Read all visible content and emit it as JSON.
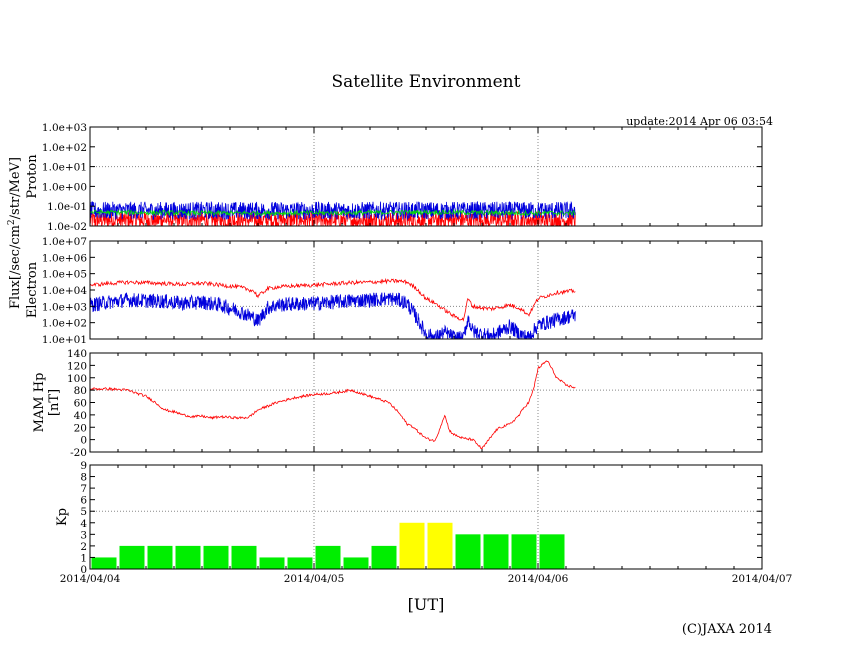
{
  "title": "Satellite Environment",
  "update": "update:2014 Apr 06 03:54",
  "copyright": "(C)JAXA 2014",
  "xlabel": "[UT]",
  "colors": {
    "red": "#ff0000",
    "blue": "#0000dd",
    "green": "#00dd00",
    "yellow": "#ffff00",
    "grid": "#888888"
  },
  "chart_data": [
    {
      "id": "proton",
      "type": "line",
      "title": "",
      "ylabel": "Proton",
      "ylabel_shared": "Flux[/sec/cm^2/str/MeV]",
      "yscale": "log",
      "ylim": [
        0.01,
        1000
      ],
      "yticks": [
        "1.0e-02",
        "1.0e-01",
        "1.0e+00",
        "1.0e+01",
        "1.0e+02",
        "1.0e+03"
      ],
      "ytick_values": [
        0.01,
        0.1,
        1,
        10,
        100,
        1000
      ],
      "grid_yvalues": [
        10
      ],
      "xlim_hours": [
        0,
        72
      ],
      "xticks": [
        "2014/04/04",
        "2014/04/05",
        "2014/04/06",
        "2014/04/07"
      ],
      "series": [
        {
          "name": "red",
          "color": "#ff0000",
          "noise": "band",
          "x": [
            0,
            12,
            24,
            36,
            46,
            52
          ],
          "y": [
            0.02,
            0.02,
            0.02,
            0.02,
            0.02,
            0.02
          ]
        },
        {
          "name": "blue",
          "color": "#0000dd",
          "noise": "band",
          "x": [
            0,
            12,
            24,
            36,
            46,
            52
          ],
          "y": [
            0.06,
            0.06,
            0.06,
            0.06,
            0.06,
            0.06
          ]
        },
        {
          "name": "green",
          "color": "#00dd00",
          "noise": "small",
          "x": [
            0,
            12,
            24,
            36,
            46,
            52
          ],
          "y": [
            0.05,
            0.045,
            0.045,
            0.05,
            0.045,
            0.045
          ]
        }
      ]
    },
    {
      "id": "electron",
      "type": "line",
      "title": "",
      "ylabel": "Electron",
      "yscale": "log",
      "ylim": [
        10,
        10000000
      ],
      "yticks": [
        "1.0e+01",
        "1.0e+02",
        "1.0e+03",
        "1.0e+04",
        "1.0e+05",
        "1.0e+06",
        "1.0e+07"
      ],
      "ytick_values": [
        10,
        100,
        1000,
        10000,
        100000,
        1000000,
        10000000
      ],
      "grid_yvalues": [
        1000
      ],
      "xlim_hours": [
        0,
        72
      ],
      "series": [
        {
          "name": "red",
          "color": "#ff0000",
          "noise": "small",
          "x": [
            0,
            2,
            4,
            6,
            8,
            10,
            12,
            14,
            16,
            17.5,
            18,
            19,
            20,
            22,
            24,
            26,
            28,
            30,
            32,
            33,
            34,
            35,
            36,
            37,
            38,
            39,
            40,
            40.5,
            41,
            42,
            43,
            44,
            45,
            46,
            47,
            48,
            50,
            52
          ],
          "y": [
            20000,
            25000,
            30000,
            28000,
            25000,
            22000,
            26000,
            20000,
            15000,
            9000,
            4000,
            12000,
            15000,
            18000,
            20000,
            24000,
            28000,
            30000,
            35000,
            36000,
            30000,
            12000,
            3000,
            1500,
            600,
            250,
            150,
            3000,
            1000,
            800,
            700,
            900,
            1200,
            800,
            300,
            3000,
            7000,
            9000
          ]
        },
        {
          "name": "blue",
          "color": "#0000dd",
          "noise": "band",
          "x": [
            0,
            2,
            4,
            6,
            8,
            10,
            12,
            14,
            16,
            17.5,
            18,
            19,
            20,
            22,
            24,
            26,
            28,
            30,
            32,
            33,
            34,
            35,
            36,
            37,
            38,
            39,
            40,
            40.5,
            41,
            42,
            43,
            44,
            45,
            46,
            47,
            48,
            50,
            52
          ],
          "y": [
            1200,
            1800,
            2500,
            2200,
            2000,
            1500,
            1800,
            1200,
            500,
            200,
            120,
            800,
            1200,
            1400,
            1500,
            1800,
            2200,
            2500,
            3000,
            2500,
            1500,
            200,
            20,
            12,
            25,
            12,
            10,
            200,
            30,
            20,
            15,
            30,
            60,
            20,
            12,
            70,
            150,
            300
          ]
        }
      ]
    },
    {
      "id": "mam",
      "type": "line",
      "title": "",
      "ylabel": "MAM Hp",
      "ylabel2": "[nT]",
      "yscale": "linear",
      "ylim": [
        -20,
        140
      ],
      "yticks": [
        "-20",
        "0",
        "20",
        "40",
        "60",
        "80",
        "100",
        "120",
        "140"
      ],
      "ytick_values": [
        -20,
        0,
        20,
        40,
        60,
        80,
        100,
        120,
        140
      ],
      "grid_yvalues": [
        80
      ],
      "xlim_hours": [
        0,
        72
      ],
      "series": [
        {
          "name": "MAM Hp",
          "color": "#ff0000",
          "noise": "small",
          "x": [
            0,
            2,
            4,
            6,
            7,
            8,
            9,
            10,
            11,
            12,
            13,
            14,
            15,
            16,
            17,
            18,
            19,
            20,
            22,
            24,
            26,
            28,
            30,
            32,
            33,
            34,
            34.5,
            35,
            36,
            37,
            38,
            38.5,
            39,
            39.5,
            40,
            41,
            42,
            43,
            43.5,
            44,
            45,
            46,
            46.5,
            47,
            47.5,
            48,
            49,
            50,
            51,
            52
          ],
          "y": [
            82,
            82,
            80,
            70,
            60,
            48,
            45,
            40,
            37,
            38,
            35,
            37,
            36,
            35,
            36,
            48,
            54,
            60,
            68,
            73,
            75,
            80,
            70,
            60,
            45,
            25,
            22,
            15,
            2,
            -2,
            40,
            15,
            8,
            5,
            2,
            0,
            -15,
            5,
            15,
            20,
            25,
            40,
            52,
            60,
            80,
            115,
            128,
            100,
            88,
            84
          ]
        }
      ]
    },
    {
      "id": "kp",
      "type": "bar",
      "title": "",
      "ylabel": "Kp",
      "yscale": "linear",
      "ylim": [
        0,
        9
      ],
      "yticks": [
        "0",
        "1",
        "2",
        "3",
        "4",
        "5",
        "6",
        "7",
        "8",
        "9"
      ],
      "ytick_values": [
        0,
        1,
        2,
        3,
        4,
        5,
        6,
        7,
        8,
        9
      ],
      "grid_yvalues": [
        5
      ],
      "xlim_hours": [
        0,
        72
      ],
      "bin_hours": 3,
      "values": [
        1,
        2,
        2,
        2,
        2,
        2,
        1,
        1,
        2,
        1,
        2,
        4,
        4,
        3,
        3,
        3,
        3
      ],
      "bar_colors": [
        "#00ee00",
        "#00ee00",
        "#00ee00",
        "#00ee00",
        "#00ee00",
        "#00ee00",
        "#00ee00",
        "#00ee00",
        "#00ee00",
        "#00ee00",
        "#00ee00",
        "#ffff00",
        "#ffff00",
        "#00ee00",
        "#00ee00",
        "#00ee00",
        "#00ee00"
      ]
    }
  ]
}
